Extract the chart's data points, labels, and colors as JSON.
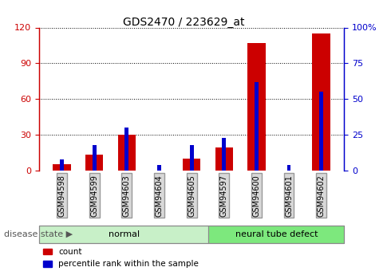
{
  "title": "GDS2470 / 223629_at",
  "categories": [
    "GSM94598",
    "GSM94599",
    "GSM94603",
    "GSM94604",
    "GSM94605",
    "GSM94597",
    "GSM94600",
    "GSM94601",
    "GSM94602"
  ],
  "count_values": [
    5,
    13,
    30,
    0,
    10,
    19,
    107,
    0,
    115
  ],
  "percentile_values": [
    8,
    18,
    30,
    4,
    18,
    23,
    62,
    4,
    55
  ],
  "groups": [
    {
      "label": "normal",
      "start": 0,
      "end": 5,
      "color": "#c8f0c8"
    },
    {
      "label": "neural tube defect",
      "start": 5,
      "end": 9,
      "color": "#7de87d"
    }
  ],
  "ylim_left": [
    0,
    120
  ],
  "ylim_right": [
    0,
    100
  ],
  "yticks_left": [
    0,
    30,
    60,
    90,
    120
  ],
  "yticks_right": [
    0,
    25,
    50,
    75,
    100
  ],
  "left_tick_color": "#cc0000",
  "right_tick_color": "#0000cc",
  "count_color": "#cc0000",
  "percentile_color": "#0000cc",
  "disease_state_label": "disease state",
  "legend_count": "count",
  "legend_percentile": "percentile rank within the sample",
  "count_bar_width": 0.55,
  "percentile_bar_width": 0.12
}
